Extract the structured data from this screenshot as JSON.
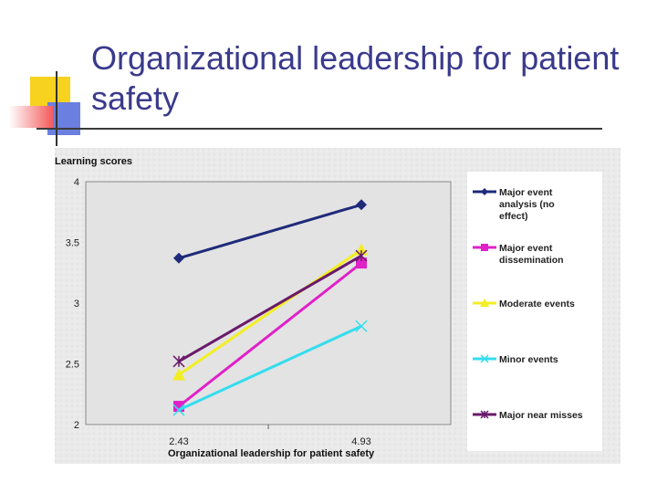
{
  "slide": {
    "title": "Organizational leadership for patient safety"
  },
  "chart_data": {
    "type": "line",
    "ylabel": "Learning scores",
    "xlabel": "Organizational leadership for patient safety",
    "x": [
      2.43,
      4.93
    ],
    "x_tick_labels": [
      "2.43",
      "4.93"
    ],
    "ylim": [
      2,
      4
    ],
    "y_ticks": [
      2,
      2.5,
      3,
      3.5,
      4
    ],
    "y_tick_labels": [
      "2",
      "2.5",
      "3",
      "3.5",
      "4"
    ],
    "legend_position": "right",
    "series": [
      {
        "name": "Major event analysis (no effect)",
        "values": [
          3.37,
          3.81
        ],
        "color": "#1f2a7a",
        "marker": "diamond"
      },
      {
        "name": "Major event dissemination",
        "values": [
          2.15,
          3.33
        ],
        "color": "#e020c8",
        "marker": "square"
      },
      {
        "name": "Moderate events",
        "values": [
          2.41,
          3.44
        ],
        "color": "#f2ee24",
        "marker": "triangle"
      },
      {
        "name": "Minor events",
        "values": [
          2.12,
          2.81
        ],
        "color": "#33ddee",
        "marker": "x"
      },
      {
        "name": "Major near misses",
        "values": [
          2.52,
          3.39
        ],
        "color": "#6a1a6a",
        "marker": "star"
      }
    ]
  }
}
